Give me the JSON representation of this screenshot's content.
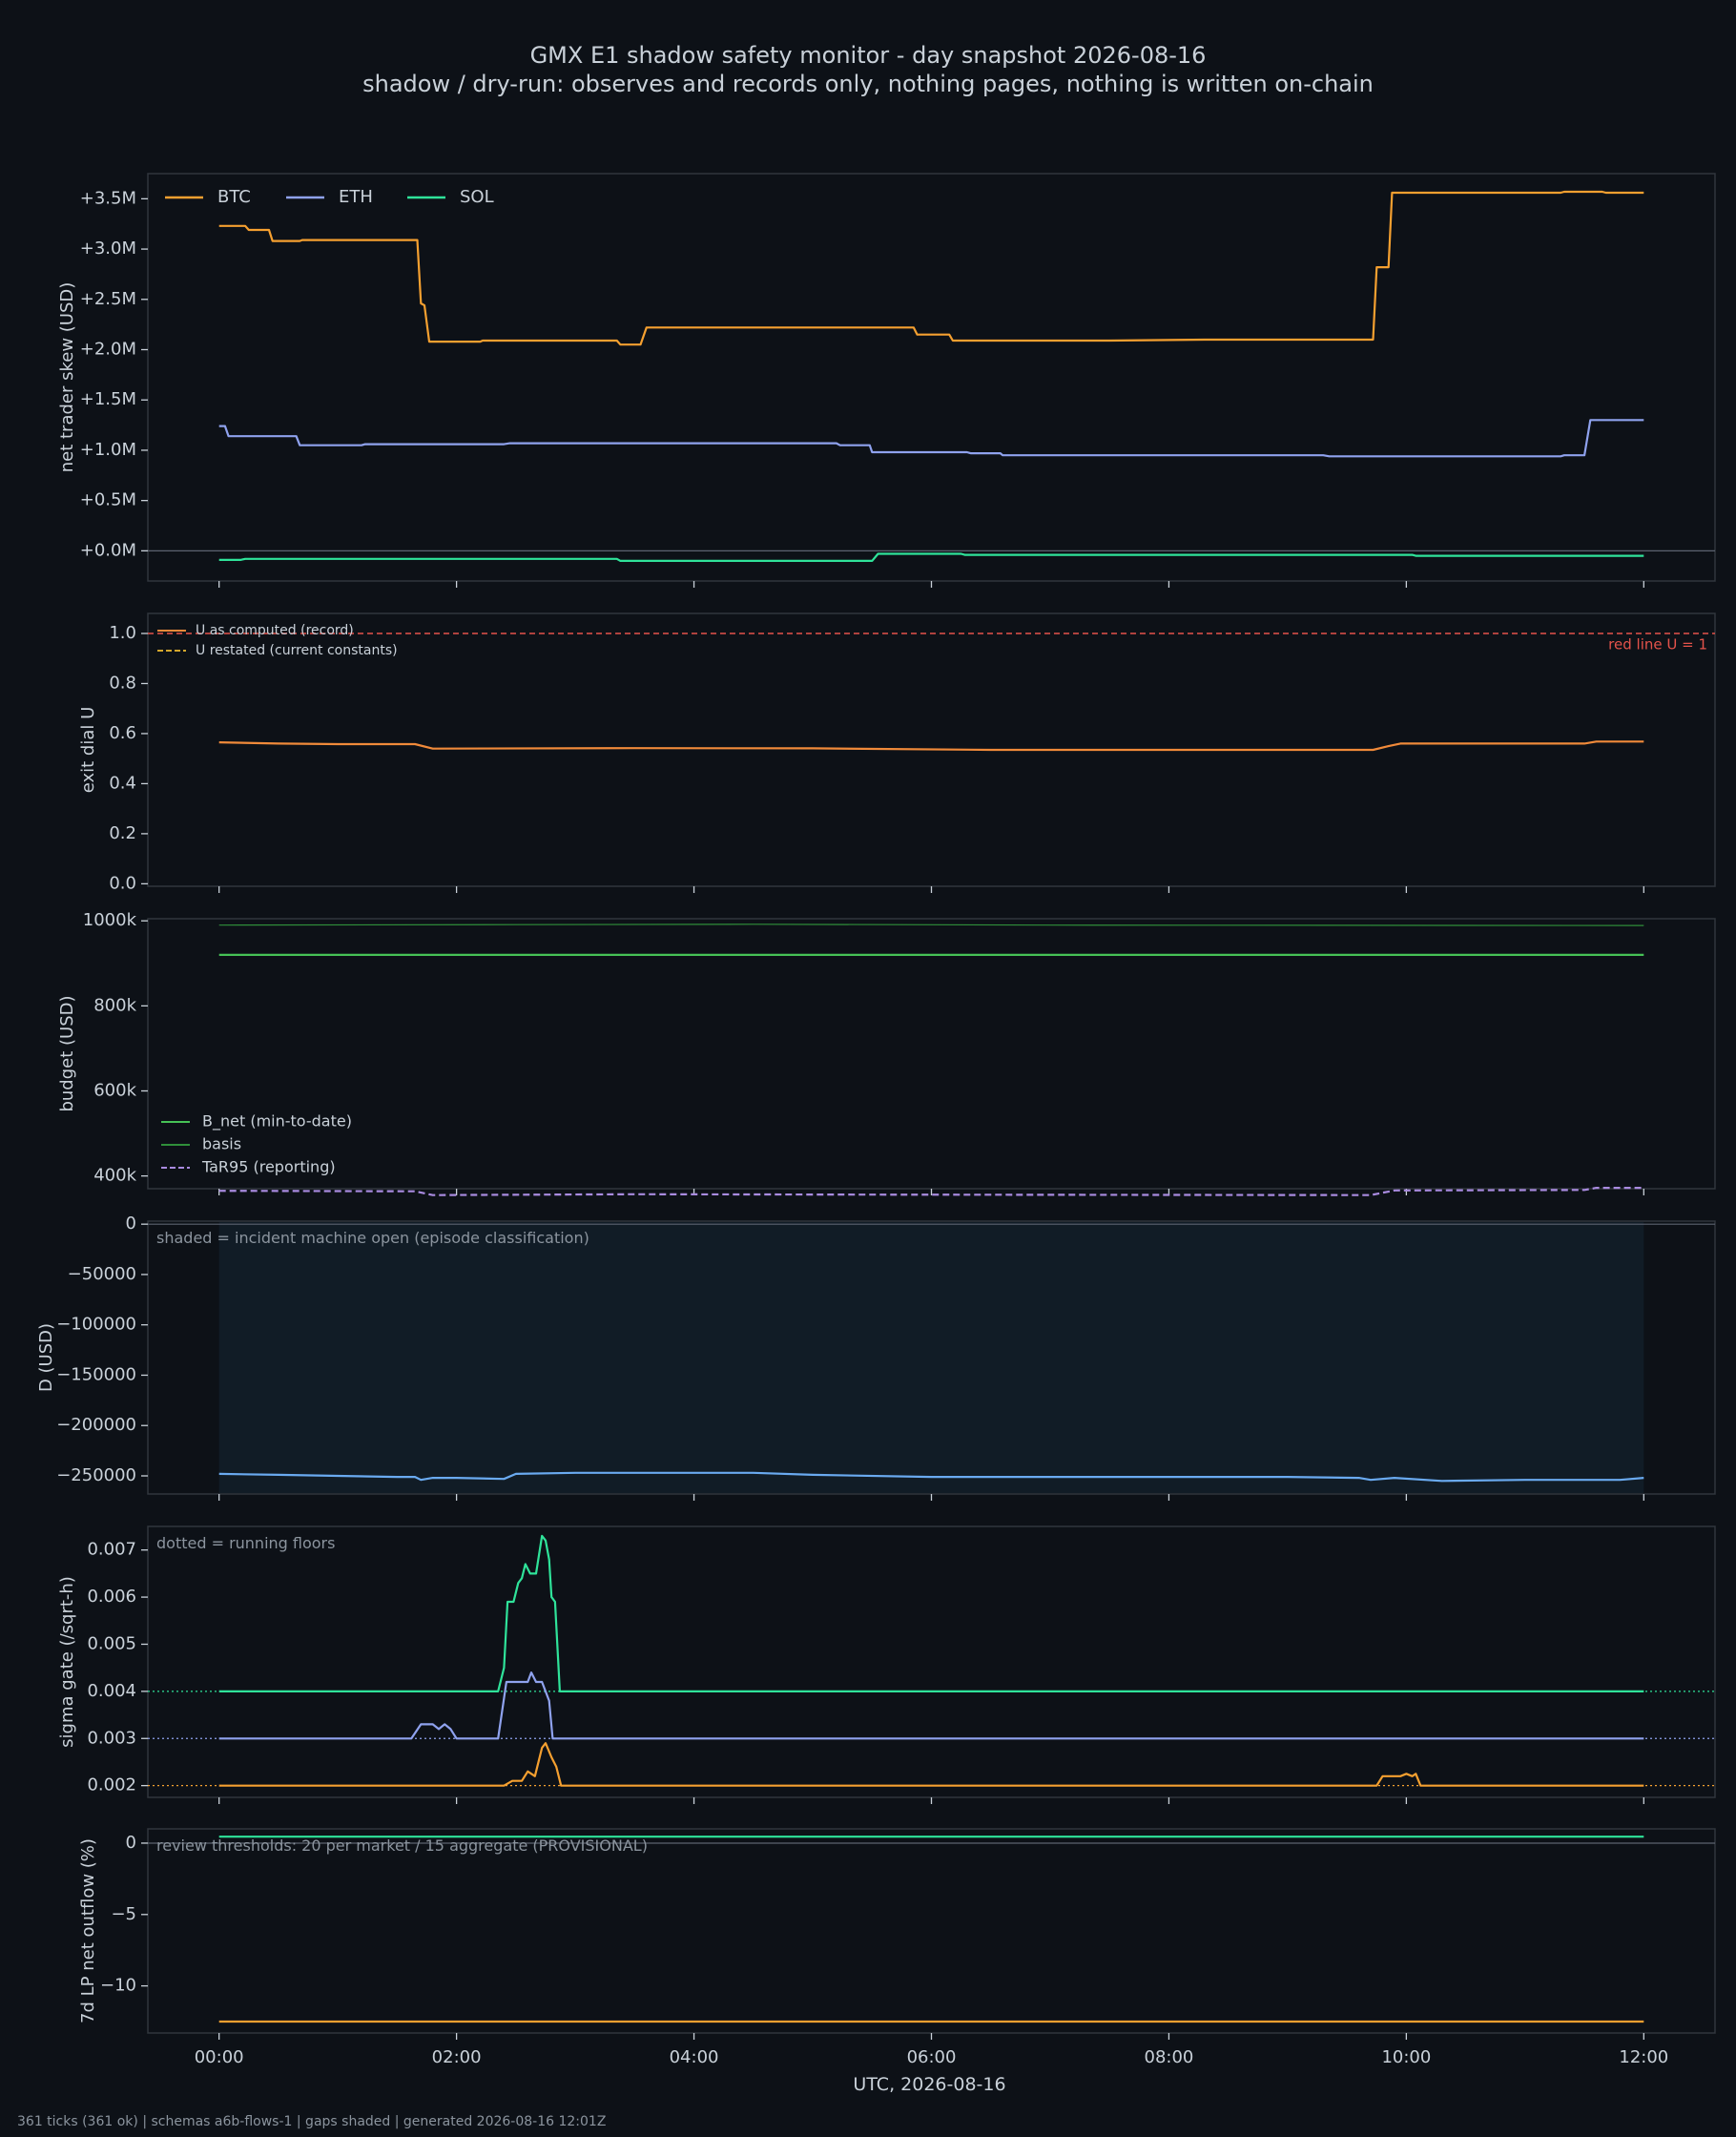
{
  "header": {
    "title": "GMX E1 shadow safety monitor - day snapshot 2026-08-16",
    "subtitle": "shadow / dry-run: observes and records only, nothing pages, nothing is written on-chain"
  },
  "footer": "361 ticks (361 ok) | schemas a6b-flows-1 | gaps shaded | generated 2026-08-16 12:01Z",
  "colors": {
    "background": "#0d1117",
    "panel": "#0d1117",
    "frame": "#30363d",
    "text": "#c9d1d9",
    "muted": "#8b949e",
    "btc": "#f5a030",
    "eth": "#8fa2ee",
    "sol": "#2fe39a",
    "u_record": "#f08a3a",
    "red_line": "#e5534b",
    "u_restated": "#d4a72c",
    "b_net": "#46c256",
    "basis": "#2f8f3a",
    "tar95": "#a98be0",
    "d_line": "#6aaaf0",
    "incident_shade": "#111c26"
  },
  "chart_data": [
    {
      "id": "skew",
      "type": "line",
      "ylabel": "net trader skew (USD)",
      "x_unit": "hours UTC",
      "xlim": [
        -0.6,
        12.6
      ],
      "ylim": [
        -0.3,
        3.75
      ],
      "yticks": [
        0,
        0.5,
        1.0,
        1.5,
        2.0,
        2.5,
        3.0,
        3.5
      ],
      "ytick_labels": [
        "+0.0M",
        "+0.5M",
        "+1.0M",
        "+1.5M",
        "+2.0M",
        "+2.5M",
        "+3.0M",
        "+3.5M"
      ],
      "zero_line": true,
      "legend": "top-left-horizontal",
      "series": [
        {
          "name": "BTC",
          "color_key": "btc",
          "points": [
            [
              0,
              3.23
            ],
            [
              0.22,
              3.23
            ],
            [
              0.25,
              3.19
            ],
            [
              0.42,
              3.19
            ],
            [
              0.45,
              3.08
            ],
            [
              0.68,
              3.08
            ],
            [
              0.7,
              3.09
            ],
            [
              1.67,
              3.09
            ],
            [
              1.7,
              2.46
            ],
            [
              1.73,
              2.44
            ],
            [
              1.77,
              2.08
            ],
            [
              2.2,
              2.08
            ],
            [
              2.22,
              2.09
            ],
            [
              3.35,
              2.09
            ],
            [
              3.38,
              2.05
            ],
            [
              3.55,
              2.05
            ],
            [
              3.6,
              2.22
            ],
            [
              5.85,
              2.22
            ],
            [
              5.88,
              2.15
            ],
            [
              6.15,
              2.15
            ],
            [
              6.18,
              2.09
            ],
            [
              7.5,
              2.09
            ],
            [
              8.3,
              2.1
            ],
            [
              9.72,
              2.1
            ],
            [
              9.75,
              2.82
            ],
            [
              9.85,
              2.82
            ],
            [
              9.88,
              3.56
            ],
            [
              11.3,
              3.56
            ],
            [
              11.33,
              3.57
            ],
            [
              11.65,
              3.57
            ],
            [
              11.68,
              3.56
            ],
            [
              12.0,
              3.56
            ]
          ]
        },
        {
          "name": "ETH",
          "color_key": "eth",
          "points": [
            [
              0,
              1.24
            ],
            [
              0.05,
              1.24
            ],
            [
              0.08,
              1.14
            ],
            [
              0.65,
              1.14
            ],
            [
              0.68,
              1.05
            ],
            [
              1.2,
              1.05
            ],
            [
              1.23,
              1.06
            ],
            [
              2.4,
              1.06
            ],
            [
              2.45,
              1.07
            ],
            [
              5.2,
              1.07
            ],
            [
              5.23,
              1.05
            ],
            [
              5.48,
              1.05
            ],
            [
              5.5,
              0.98
            ],
            [
              6.3,
              0.98
            ],
            [
              6.33,
              0.97
            ],
            [
              6.58,
              0.97
            ],
            [
              6.6,
              0.95
            ],
            [
              9.3,
              0.95
            ],
            [
              9.35,
              0.94
            ],
            [
              11.3,
              0.94
            ],
            [
              11.33,
              0.95
            ],
            [
              11.5,
              0.95
            ],
            [
              11.55,
              1.3
            ],
            [
              12.0,
              1.3
            ]
          ]
        },
        {
          "name": "SOL",
          "color_key": "sol",
          "points": [
            [
              0,
              -0.09
            ],
            [
              0.18,
              -0.09
            ],
            [
              0.22,
              -0.08
            ],
            [
              3.35,
              -0.08
            ],
            [
              3.38,
              -0.1
            ],
            [
              5.5,
              -0.1
            ],
            [
              5.55,
              -0.03
            ],
            [
              6.25,
              -0.03
            ],
            [
              6.28,
              -0.04
            ],
            [
              10.05,
              -0.04
            ],
            [
              10.08,
              -0.05
            ],
            [
              12.0,
              -0.05
            ]
          ]
        }
      ]
    },
    {
      "id": "exit_dial",
      "type": "line",
      "ylabel": "exit dial U",
      "xlim": [
        -0.6,
        12.6
      ],
      "ylim": [
        -0.01,
        1.08
      ],
      "yticks": [
        0,
        0.2,
        0.4,
        0.6,
        0.8,
        1.0
      ],
      "ytick_labels": [
        "0.0",
        "0.2",
        "0.4",
        "0.6",
        "0.8",
        "1.0"
      ],
      "legend": "top-left",
      "red_line": {
        "value": 1.0,
        "label": "red line U = 1"
      },
      "series": [
        {
          "name": "U as computed (record)",
          "color_key": "u_record",
          "points": [
            [
              0,
              0.565
            ],
            [
              0.5,
              0.56
            ],
            [
              1.0,
              0.558
            ],
            [
              1.65,
              0.558
            ],
            [
              1.8,
              0.54
            ],
            [
              3.5,
              0.542
            ],
            [
              5.0,
              0.541
            ],
            [
              6.5,
              0.535
            ],
            [
              8.5,
              0.535
            ],
            [
              9.72,
              0.535
            ],
            [
              9.85,
              0.55
            ],
            [
              9.95,
              0.56
            ],
            [
              11.5,
              0.56
            ],
            [
              11.6,
              0.568
            ],
            [
              12.0,
              0.568
            ]
          ]
        },
        {
          "name": "U restated (current constants)",
          "color_key": "u_restated",
          "dashed": true,
          "points": []
        }
      ]
    },
    {
      "id": "budget",
      "type": "line",
      "ylabel": "budget (USD)",
      "xlim": [
        -0.6,
        12.6
      ],
      "ylim": [
        370000,
        1005000
      ],
      "yticks": [
        400000,
        600000,
        800000,
        1000000
      ],
      "ytick_labels": [
        "400k",
        "600k",
        "800k",
        "1000k"
      ],
      "legend": "bottom-left",
      "series": [
        {
          "name": "B_net (min-to-date)",
          "color_key": "b_net",
          "points": [
            [
              0,
              920000
            ],
            [
              12.0,
              920000
            ]
          ]
        },
        {
          "name": "basis",
          "color_key": "basis",
          "points": [
            [
              0,
              990000
            ],
            [
              2.5,
              991000
            ],
            [
              4.5,
              992000
            ],
            [
              7.0,
              990000
            ],
            [
              12.0,
              989000
            ]
          ]
        },
        {
          "name": "TaR95 (reporting)",
          "color_key": "tar95",
          "dashed": true,
          "points": [
            [
              0,
              365000
            ],
            [
              1.65,
              364000
            ],
            [
              1.8,
              355000
            ],
            [
              3.5,
              357000
            ],
            [
              5.5,
              356000
            ],
            [
              9.7,
              355000
            ],
            [
              9.9,
              366000
            ],
            [
              11.5,
              367000
            ],
            [
              11.6,
              372000
            ],
            [
              12.0,
              372000
            ]
          ]
        }
      ]
    },
    {
      "id": "d_usd",
      "type": "line",
      "ylabel": "D (USD)",
      "xlim": [
        -0.6,
        12.6
      ],
      "ylim": [
        -268000,
        3000
      ],
      "yticks": [
        0,
        -50000,
        -100000,
        -150000,
        -200000,
        -250000
      ],
      "ytick_labels": [
        "0",
        "−50000",
        "−100000",
        "−150000",
        "−200000",
        "−250000"
      ],
      "zero_line": true,
      "annotation": "shaded = incident machine open (episode classification)",
      "shaded_x": [
        0,
        12.0
      ],
      "series": [
        {
          "name": "D",
          "color_key": "d_line",
          "points": [
            [
              0,
              -248000
            ],
            [
              0.5,
              -249000
            ],
            [
              1.0,
              -250000
            ],
            [
              1.5,
              -251000
            ],
            [
              1.65,
              -251000
            ],
            [
              1.7,
              -254000
            ],
            [
              1.8,
              -252000
            ],
            [
              2.0,
              -252000
            ],
            [
              2.4,
              -253000
            ],
            [
              2.5,
              -248000
            ],
            [
              3.0,
              -247000
            ],
            [
              4.5,
              -247000
            ],
            [
              5.0,
              -249000
            ],
            [
              6.0,
              -251000
            ],
            [
              7.5,
              -251000
            ],
            [
              9.0,
              -251000
            ],
            [
              9.6,
              -252000
            ],
            [
              9.7,
              -254000
            ],
            [
              9.9,
              -252000
            ],
            [
              10.3,
              -255000
            ],
            [
              11.0,
              -254000
            ],
            [
              11.8,
              -254000
            ],
            [
              12.0,
              -252000
            ]
          ]
        }
      ]
    },
    {
      "id": "sigma_gate",
      "type": "line",
      "ylabel": "sigma gate (/sqrt-h)",
      "xlim": [
        -0.6,
        12.6
      ],
      "ylim": [
        0.00175,
        0.0075
      ],
      "yticks": [
        0.002,
        0.003,
        0.004,
        0.005,
        0.006,
        0.007
      ],
      "ytick_labels": [
        "0.002",
        "0.003",
        "0.004",
        "0.005",
        "0.006",
        "0.007"
      ],
      "annotation": "dotted = running floors",
      "floors": [
        {
          "value": 0.004,
          "color_key": "sol"
        },
        {
          "value": 0.003,
          "color_key": "eth"
        },
        {
          "value": 0.002,
          "color_key": "btc"
        }
      ],
      "series": [
        {
          "name": "SOL",
          "color_key": "sol",
          "points": [
            [
              0,
              0.004
            ],
            [
              2.35,
              0.004
            ],
            [
              2.4,
              0.0045
            ],
            [
              2.43,
              0.0059
            ],
            [
              2.48,
              0.0059
            ],
            [
              2.52,
              0.0063
            ],
            [
              2.55,
              0.0064
            ],
            [
              2.58,
              0.0067
            ],
            [
              2.62,
              0.0065
            ],
            [
              2.67,
              0.0065
            ],
            [
              2.72,
              0.0073
            ],
            [
              2.75,
              0.0072
            ],
            [
              2.78,
              0.0068
            ],
            [
              2.8,
              0.006
            ],
            [
              2.83,
              0.0059
            ],
            [
              2.87,
              0.004
            ],
            [
              12.0,
              0.004
            ]
          ]
        },
        {
          "name": "ETH",
          "color_key": "eth",
          "points": [
            [
              0,
              0.003
            ],
            [
              1.62,
              0.003
            ],
            [
              1.7,
              0.0033
            ],
            [
              1.8,
              0.0033
            ],
            [
              1.85,
              0.0032
            ],
            [
              1.9,
              0.0033
            ],
            [
              1.95,
              0.0032
            ],
            [
              2.0,
              0.003
            ],
            [
              2.35,
              0.003
            ],
            [
              2.42,
              0.0042
            ],
            [
              2.6,
              0.0042
            ],
            [
              2.63,
              0.0044
            ],
            [
              2.67,
              0.0042
            ],
            [
              2.72,
              0.0042
            ],
            [
              2.78,
              0.0038
            ],
            [
              2.81,
              0.003
            ],
            [
              12.0,
              0.003
            ]
          ]
        },
        {
          "name": "BTC",
          "color_key": "btc",
          "points": [
            [
              0,
              0.002
            ],
            [
              2.4,
              0.002
            ],
            [
              2.47,
              0.0021
            ],
            [
              2.55,
              0.0021
            ],
            [
              2.6,
              0.0023
            ],
            [
              2.66,
              0.0022
            ],
            [
              2.72,
              0.0028
            ],
            [
              2.75,
              0.0029
            ],
            [
              2.8,
              0.0026
            ],
            [
              2.84,
              0.0024
            ],
            [
              2.88,
              0.002
            ],
            [
              9.75,
              0.002
            ],
            [
              9.8,
              0.0022
            ],
            [
              9.95,
              0.0022
            ],
            [
              10.0,
              0.00225
            ],
            [
              10.05,
              0.0022
            ],
            [
              10.08,
              0.00225
            ],
            [
              10.12,
              0.002
            ],
            [
              12.0,
              0.002
            ]
          ]
        }
      ]
    },
    {
      "id": "lp_outflow",
      "type": "line",
      "ylabel": "7d LP net outflow (%)",
      "xlabel": "UTC, 2026-08-16",
      "xlim": [
        -0.6,
        12.6
      ],
      "ylim": [
        -13.3,
        1.0
      ],
      "yticks": [
        0,
        -5,
        -10
      ],
      "ytick_labels": [
        "0",
        "−5",
        "−10"
      ],
      "xticks": [
        0,
        2,
        4,
        6,
        8,
        10,
        12
      ],
      "xtick_labels": [
        "00:00",
        "02:00",
        "04:00",
        "06:00",
        "08:00",
        "10:00",
        "12:00"
      ],
      "zero_line": true,
      "annotation": "review thresholds: 20 per market / 15 aggregate (PROVISIONAL)",
      "series": [
        {
          "name": "SOL",
          "color_key": "sol",
          "points": [
            [
              0,
              0.45
            ],
            [
              12.0,
              0.45
            ]
          ]
        },
        {
          "name": "BTC",
          "color_key": "btc",
          "points": [
            [
              0,
              -12.5
            ],
            [
              12.0,
              -12.5
            ]
          ]
        }
      ]
    }
  ]
}
